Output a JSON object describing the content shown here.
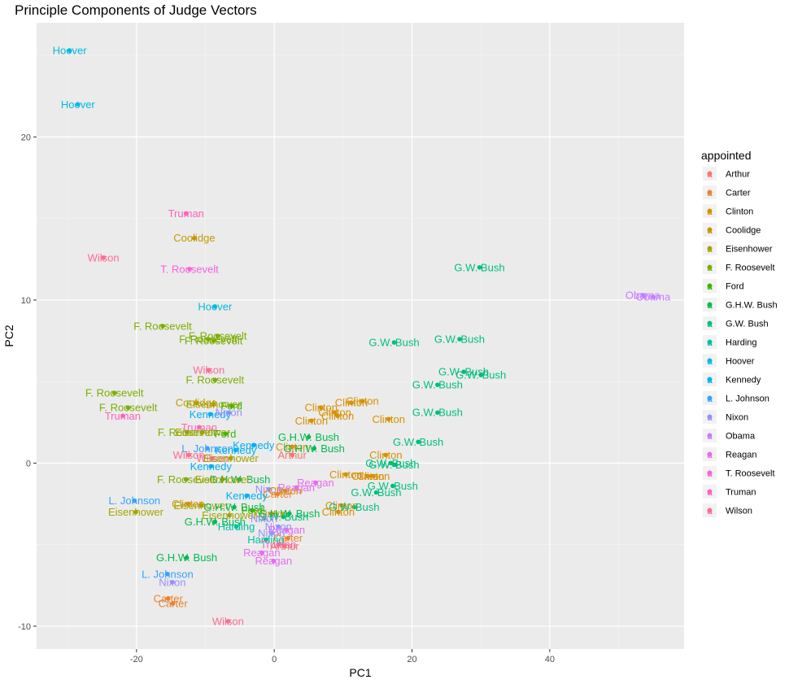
{
  "chart_data": {
    "type": "scatter",
    "title": "Principle Components of Judge Vectors",
    "xlabel": "PC1",
    "ylabel": "PC2",
    "xlim": [
      -34.5,
      59.5
    ],
    "ylim": [
      -11.4,
      27.0
    ],
    "x_ticks": [
      -20,
      0,
      20,
      40
    ],
    "y_ticks": [
      -10,
      0,
      10,
      20
    ],
    "grid": true,
    "legend": {
      "title": "appointed",
      "position": "right",
      "entries": [
        "Arthur",
        "Carter",
        "Clinton",
        "Coolidge",
        "Eisenhower",
        "F. Roosevelt",
        "Ford",
        "G.H.W. Bush",
        "G.W. Bush",
        "Harding",
        "Hoover",
        "Kennedy",
        "L. Johnson",
        "Nixon",
        "Obama",
        "Reagan",
        "T. Roosevelt",
        "Truman",
        "Wilson"
      ]
    },
    "colors": {
      "Arthur": "#F8766D",
      "Carter": "#EA8331",
      "Clinton": "#D89000",
      "Coolidge": "#C09B00",
      "Eisenhower": "#A3A500",
      "F. Roosevelt": "#7CAE00",
      "Ford": "#39B600",
      "G.H.W. Bush": "#00BB4E",
      "G.W. Bush": "#00BF7D",
      "Harding": "#00C1A3",
      "Hoover": "#00BAE0",
      "Kennedy": "#00B0F6",
      "L. Johnson": "#35A2FF",
      "Nixon": "#9590FF",
      "Obama": "#C77CFF",
      "Reagan": "#E76BF3",
      "T. Roosevelt": "#FA62DB",
      "Truman": "#FF62BC",
      "Wilson": "#FF6C91"
    },
    "points": [
      {
        "group": "Hoover",
        "x": -29.7,
        "y": 25.3
      },
      {
        "group": "Hoover",
        "x": -28.5,
        "y": 22.0
      },
      {
        "group": "Truman",
        "x": -12.8,
        "y": 15.3
      },
      {
        "group": "Coolidge",
        "x": -11.6,
        "y": 13.8
      },
      {
        "group": "Wilson",
        "x": -24.8,
        "y": 12.6
      },
      {
        "group": "T. Roosevelt",
        "x": -12.3,
        "y": 11.9
      },
      {
        "group": "G.W. Bush",
        "x": 29.8,
        "y": 12.0
      },
      {
        "group": "Obama",
        "x": 53.5,
        "y": 10.3
      },
      {
        "group": "Obama",
        "x": 55.0,
        "y": 10.2
      },
      {
        "group": "Hoover",
        "x": -8.6,
        "y": 9.6
      },
      {
        "group": "F. Roosevelt",
        "x": -16.2,
        "y": 8.4
      },
      {
        "group": "F. Roosevelt",
        "x": -8.2,
        "y": 7.8
      },
      {
        "group": "F. Roosevelt",
        "x": -9.6,
        "y": 7.6
      },
      {
        "group": "F. Roosevelt",
        "x": -8.8,
        "y": 7.5
      },
      {
        "group": "G.W. Bush",
        "x": 17.4,
        "y": 7.4
      },
      {
        "group": "G.W. Bush",
        "x": 26.9,
        "y": 7.6
      },
      {
        "group": "Wilson",
        "x": -9.5,
        "y": 5.7
      },
      {
        "group": "F. Roosevelt",
        "x": -8.6,
        "y": 5.1
      },
      {
        "group": "G.W. Bush",
        "x": 27.5,
        "y": 5.6
      },
      {
        "group": "G.W. Bush",
        "x": 30.0,
        "y": 5.4
      },
      {
        "group": "G.W. Bush",
        "x": 23.7,
        "y": 4.8
      },
      {
        "group": "F. Roosevelt",
        "x": -23.2,
        "y": 4.3
      },
      {
        "group": "Clinton",
        "x": 12.8,
        "y": 3.8
      },
      {
        "group": "Clinton",
        "x": 11.2,
        "y": 3.7
      },
      {
        "group": "Coolidge",
        "x": -11.3,
        "y": 3.7
      },
      {
        "group": "Eisenhower",
        "x": -8.8,
        "y": 3.6
      },
      {
        "group": "Ford",
        "x": -6.2,
        "y": 3.5
      },
      {
        "group": "F. Roosevelt",
        "x": -21.2,
        "y": 3.4
      },
      {
        "group": "Clinton",
        "x": 6.8,
        "y": 3.4
      },
      {
        "group": "Clinton",
        "x": 8.8,
        "y": 3.1
      },
      {
        "group": "Clinton",
        "x": 9.2,
        "y": 2.9
      },
      {
        "group": "Kennedy",
        "x": -9.3,
        "y": 3.0
      },
      {
        "group": "Nixon",
        "x": -6.6,
        "y": 3.1
      },
      {
        "group": "G.W. Bush",
        "x": 23.7,
        "y": 3.1
      },
      {
        "group": "Truman",
        "x": -22.0,
        "y": 2.9
      },
      {
        "group": "Clinton",
        "x": 16.6,
        "y": 2.7
      },
      {
        "group": "Clinton",
        "x": 5.4,
        "y": 2.6
      },
      {
        "group": "Truman",
        "x": -10.9,
        "y": 2.2
      },
      {
        "group": "F. Roosevelt",
        "x": -12.7,
        "y": 1.9
      },
      {
        "group": "Eisenhower",
        "x": -10.4,
        "y": 1.9
      },
      {
        "group": "Ford",
        "x": -7.1,
        "y": 1.8
      },
      {
        "group": "G.H.W. Bush",
        "x": 5.0,
        "y": 1.6
      },
      {
        "group": "G.W. Bush",
        "x": 20.9,
        "y": 1.3
      },
      {
        "group": "Kennedy",
        "x": -3.0,
        "y": 1.1
      },
      {
        "group": "Clinton",
        "x": 2.6,
        "y": 1.0
      },
      {
        "group": "G.H.W. Bush",
        "x": 5.8,
        "y": 0.9
      },
      {
        "group": "L. Johnson",
        "x": -9.7,
        "y": 0.9
      },
      {
        "group": "Kennedy",
        "x": -5.6,
        "y": 0.8
      },
      {
        "group": "Arthur",
        "x": 2.6,
        "y": 0.5
      },
      {
        "group": "Wilson",
        "x": -12.4,
        "y": 0.5
      },
      {
        "group": "Wilson",
        "x": -9.0,
        "y": 0.3
      },
      {
        "group": "Eisenhower",
        "x": -6.3,
        "y": 0.3
      },
      {
        "group": "Clinton",
        "x": 16.2,
        "y": 0.5
      },
      {
        "group": "G.W. Bush",
        "x": 16.9,
        "y": 0.0
      },
      {
        "group": "G.W. Bush",
        "x": 17.4,
        "y": -0.1
      },
      {
        "group": "Kennedy",
        "x": -9.2,
        "y": -0.2
      },
      {
        "group": "Clinton",
        "x": 10.4,
        "y": -0.7
      },
      {
        "group": "Clinton",
        "x": 13.6,
        "y": -0.8
      },
      {
        "group": "Clinton",
        "x": 14.4,
        "y": -0.8
      },
      {
        "group": "F. Roosevelt",
        "x": -12.8,
        "y": -1.0
      },
      {
        "group": "G.H.W. Bush",
        "x": -5.0,
        "y": -1.0
      },
      {
        "group": "Eisenhower",
        "x": -7.5,
        "y": -1.0
      },
      {
        "group": "G.W. Bush",
        "x": 17.2,
        "y": -1.4
      },
      {
        "group": "G.W. Bush",
        "x": 14.8,
        "y": -1.8
      },
      {
        "group": "Reagan",
        "x": 6.0,
        "y": -1.2
      },
      {
        "group": "Reagan",
        "x": 3.2,
        "y": -1.5
      },
      {
        "group": "Nixon",
        "x": -0.8,
        "y": -1.6
      },
      {
        "group": "Clinton",
        "x": 1.6,
        "y": -1.7
      },
      {
        "group": "Carter",
        "x": 0.5,
        "y": -1.9
      },
      {
        "group": "Kennedy",
        "x": -4.0,
        "y": -2.0
      },
      {
        "group": "L. Johnson",
        "x": -20.3,
        "y": -2.3
      },
      {
        "group": "Clinton",
        "x": -12.5,
        "y": -2.5
      },
      {
        "group": "Clinton",
        "x": 9.8,
        "y": -2.6
      },
      {
        "group": "G.W. Bush",
        "x": 11.6,
        "y": -2.7
      },
      {
        "group": "Eisenhower",
        "x": -10.6,
        "y": -2.6
      },
      {
        "group": "G.H.W. Bush",
        "x": -5.8,
        "y": -2.7
      },
      {
        "group": "Ford",
        "x": -3.2,
        "y": -2.9
      },
      {
        "group": "Clinton",
        "x": 9.3,
        "y": -3.0
      },
      {
        "group": "Eisenhower",
        "x": -20.1,
        "y": -3.0
      },
      {
        "group": "Eisenhower",
        "x": -6.5,
        "y": -3.2
      },
      {
        "group": "Clinton",
        "x": -0.4,
        "y": -3.1
      },
      {
        "group": "G.H.W. Bush",
        "x": 2.2,
        "y": -3.1
      },
      {
        "group": "G.W. Bush",
        "x": 1.3,
        "y": -3.3
      },
      {
        "group": "Nixon",
        "x": -1.5,
        "y": -3.4
      },
      {
        "group": "G.H.W. Bush",
        "x": -8.6,
        "y": -3.6
      },
      {
        "group": "Harding",
        "x": -5.5,
        "y": -3.9
      },
      {
        "group": "Nixon",
        "x": 0.6,
        "y": -3.9
      },
      {
        "group": "Reagan",
        "x": 1.8,
        "y": -4.1
      },
      {
        "group": "Nixon",
        "x": -0.4,
        "y": -4.3
      },
      {
        "group": "Carter",
        "x": 2.0,
        "y": -4.6
      },
      {
        "group": "Harding",
        "x": -1.2,
        "y": -4.7
      },
      {
        "group": "Truman",
        "x": 0.6,
        "y": -5.0
      },
      {
        "group": "Arthur",
        "x": 1.5,
        "y": -5.1
      },
      {
        "group": "Reagan",
        "x": -1.8,
        "y": -5.5
      },
      {
        "group": "Reagan",
        "x": -0.1,
        "y": -6.0
      },
      {
        "group": "G.H.W. Bush",
        "x": -12.7,
        "y": -5.8
      },
      {
        "group": "L. Johnson",
        "x": -15.5,
        "y": -6.8
      },
      {
        "group": "Nixon",
        "x": -14.8,
        "y": -7.3
      },
      {
        "group": "Carter",
        "x": -15.4,
        "y": -8.3
      },
      {
        "group": "Carter",
        "x": -14.7,
        "y": -8.6
      },
      {
        "group": "Wilson",
        "x": -6.7,
        "y": -9.7
      }
    ]
  }
}
